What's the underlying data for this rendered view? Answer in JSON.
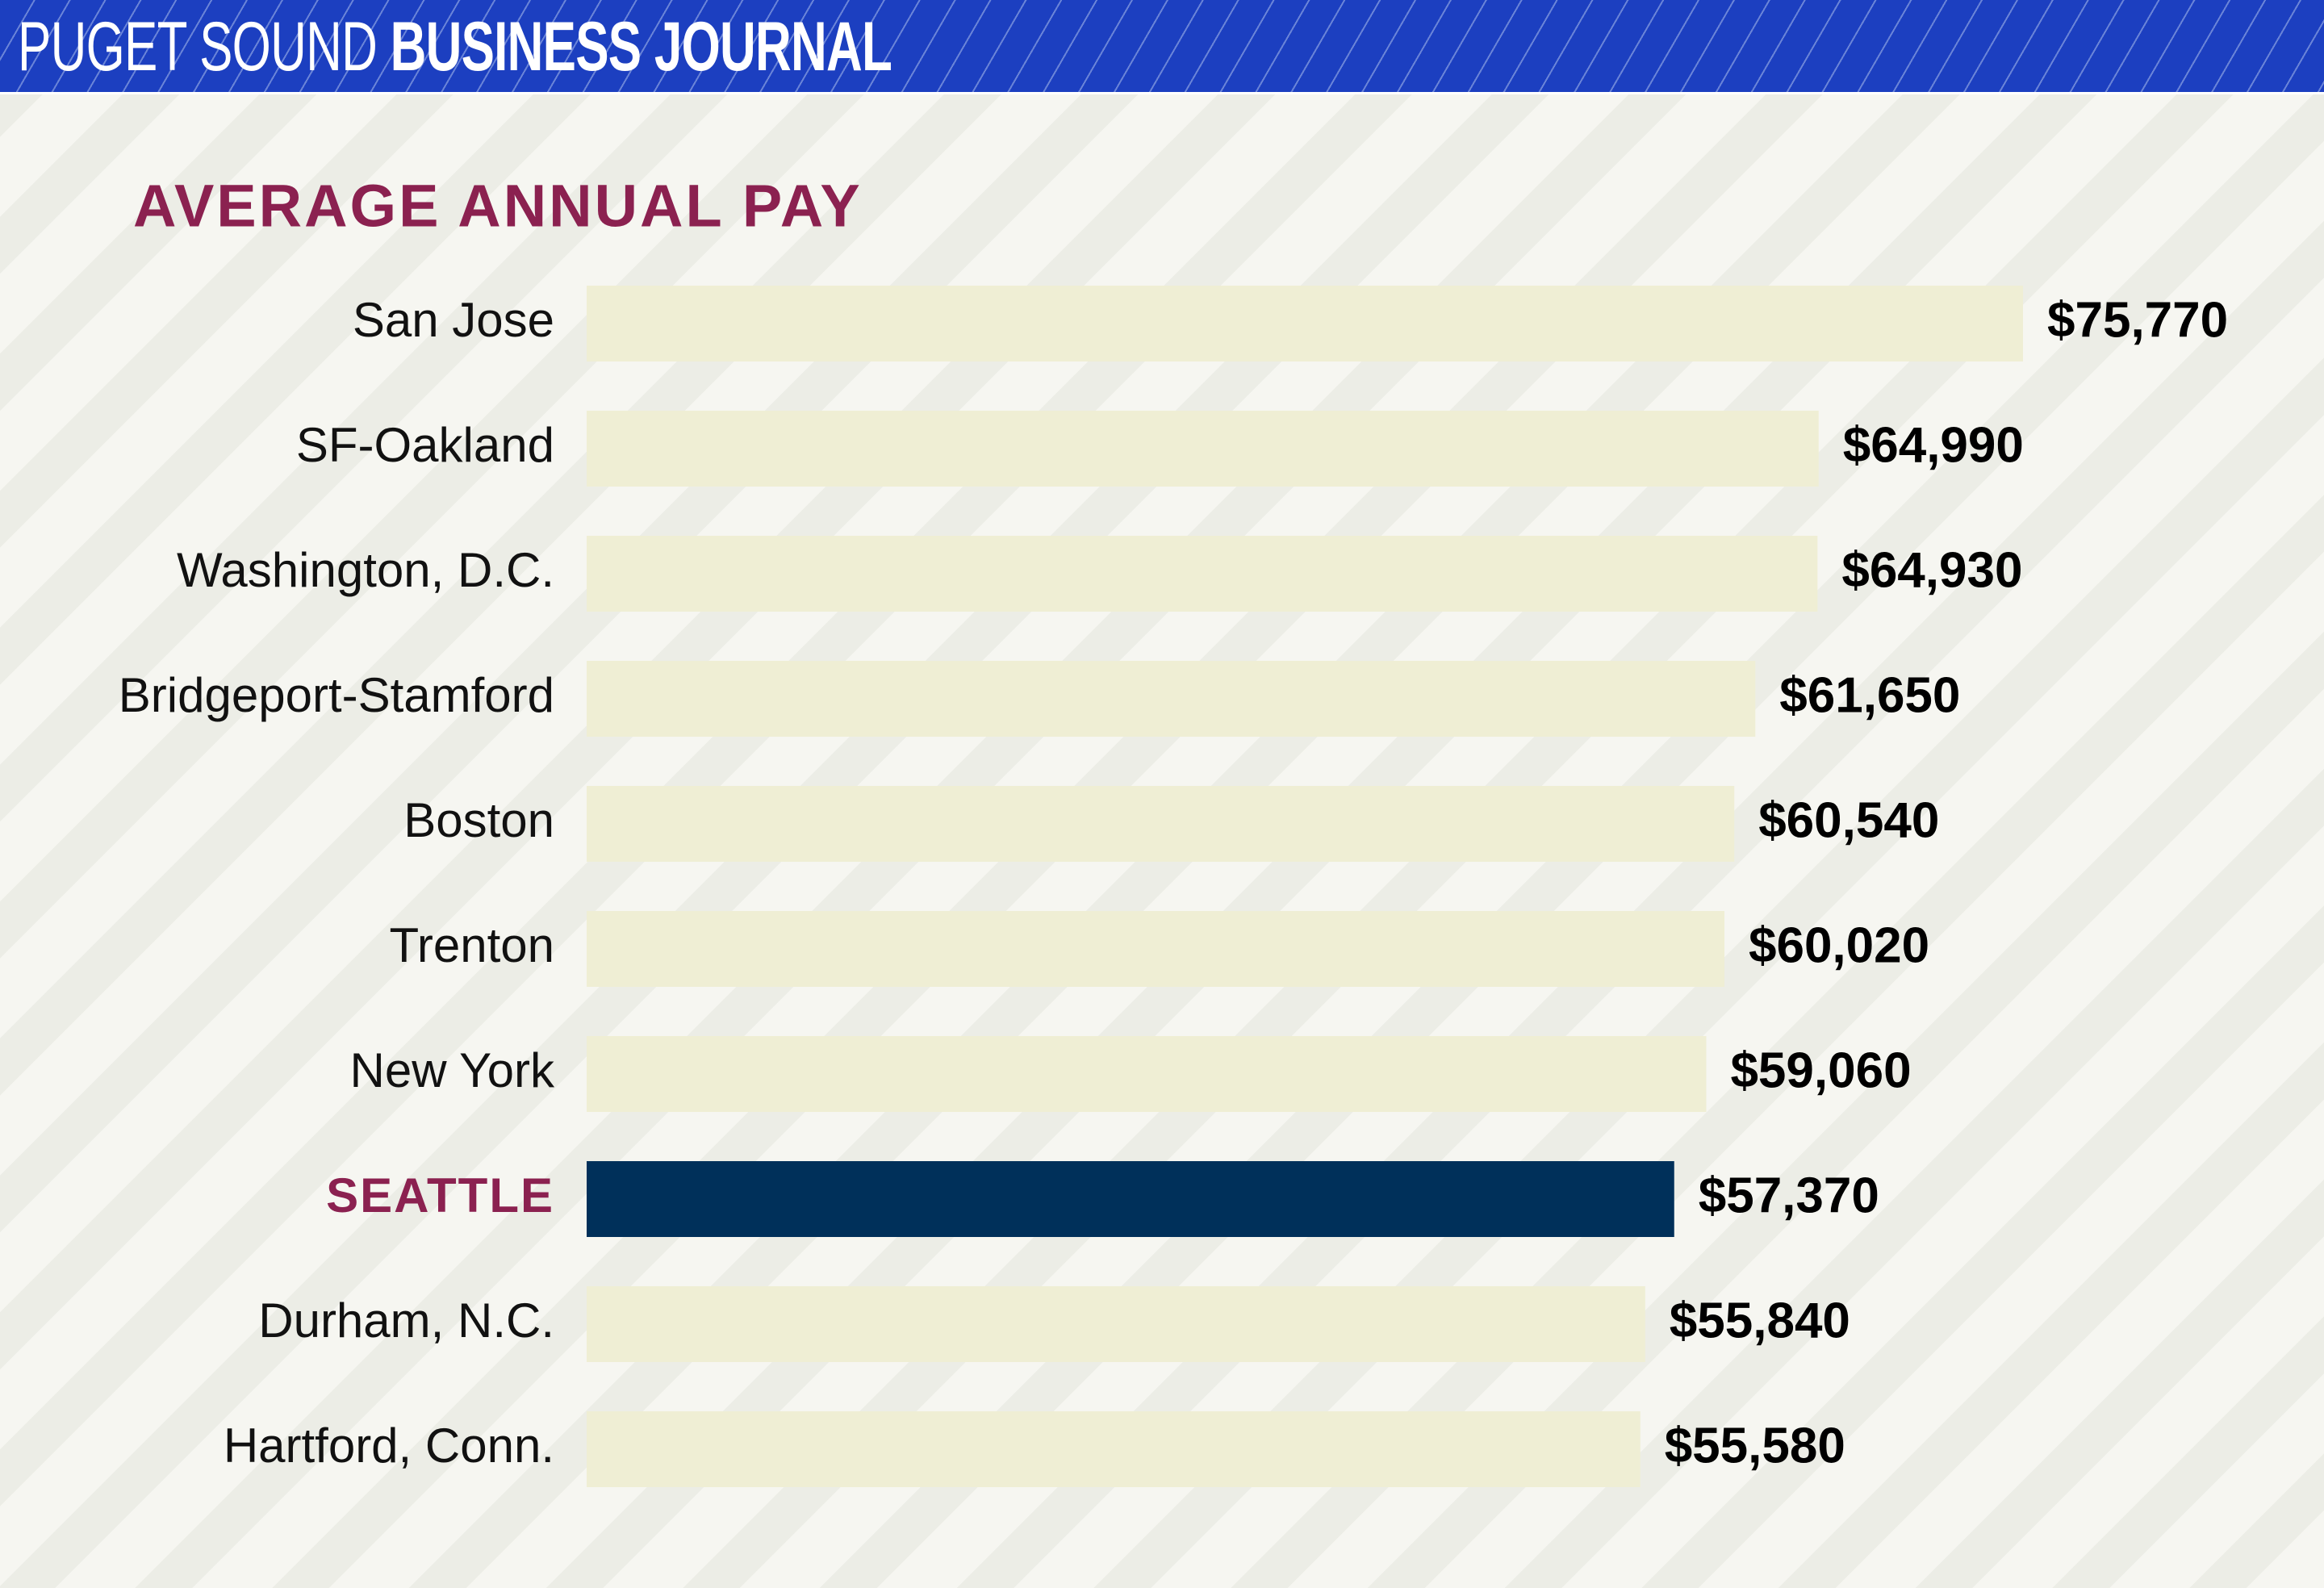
{
  "header": {
    "brand_light": "PUGET SOUND",
    "brand_bold": "BUSINESS JOURNAL"
  },
  "chart_data": {
    "type": "hbar",
    "title": "AVERAGE ANNUAL PAY",
    "categories": [
      "San Jose",
      "SF-Oakland",
      "Washington, D.C.",
      "Bridgeport-Stamford",
      "Boston",
      "Trenton",
      "New York",
      "SEATTLE",
      "Durham, N.C.",
      "Hartford, Conn."
    ],
    "values": [
      75770,
      64990,
      64930,
      61650,
      60540,
      60020,
      59060,
      57370,
      55840,
      55580
    ],
    "value_labels": [
      "$75,770",
      "$64,990",
      "$64,930",
      "$61,650",
      "$60,540",
      "$60,020",
      "$59,060",
      "$57,370",
      "$55,840",
      "$55,580"
    ],
    "colors": [
      "#efeed4",
      "#efeed4",
      "#efeed4",
      "#efeed4",
      "#efeed4",
      "#efeed4",
      "#efeed4",
      "#00305a",
      "#efeed4",
      "#efeed4"
    ],
    "label_colors": [
      "#111111",
      "#111111",
      "#111111",
      "#111111",
      "#111111",
      "#111111",
      "#111111",
      "#8b2150",
      "#111111",
      "#111111"
    ]
  }
}
